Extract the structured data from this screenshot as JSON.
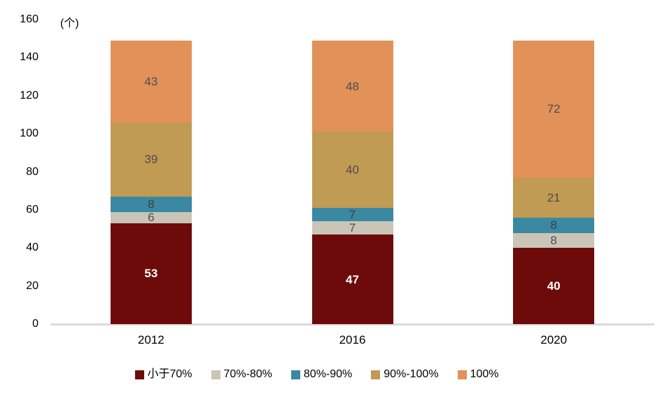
{
  "chart_data": {
    "type": "bar",
    "stacked": true,
    "title": "",
    "unit": "(个)",
    "categories": [
      "2012",
      "2016",
      "2020"
    ],
    "series": [
      {
        "name": "小于70%",
        "color": "#6D0A0A",
        "value_label_color": "#FFFFFF",
        "value_label_bold": true,
        "values": [
          53,
          47,
          40
        ]
      },
      {
        "name": "70%-80%",
        "color": "#C9C5B7",
        "value_label_color": "#4D4D4D",
        "value_label_bold": false,
        "values": [
          6,
          7,
          8
        ]
      },
      {
        "name": "80%-90%",
        "color": "#3A88A2",
        "value_label_color": "#3F3F3F",
        "value_label_bold": false,
        "values": [
          8,
          7,
          8
        ]
      },
      {
        "name": "90%-100%",
        "color": "#C19A53",
        "value_label_color": "#4D4D4D",
        "value_label_bold": false,
        "values": [
          39,
          40,
          21
        ]
      },
      {
        "name": "100%",
        "color": "#E29158",
        "value_label_color": "#4D4D4D",
        "value_label_bold": false,
        "values": [
          43,
          48,
          72
        ]
      }
    ],
    "totals": [
      149,
      149,
      149
    ],
    "ylim": [
      0,
      160
    ],
    "y_tick_step": 20,
    "y_ticks": [
      0,
      20,
      40,
      60,
      80,
      100,
      120,
      140,
      160
    ],
    "grid": false,
    "legend_position": "bottom",
    "axis_line_color": "#DADADA"
  }
}
